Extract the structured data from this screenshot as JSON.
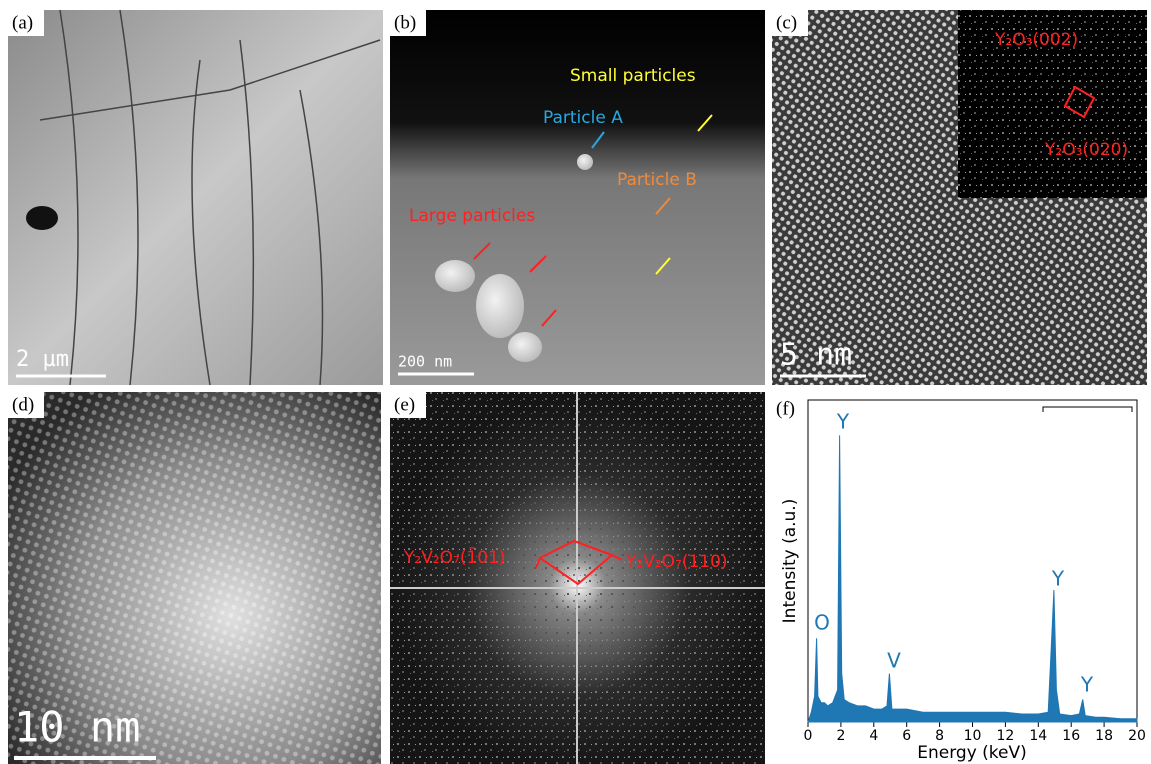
{
  "panels": [
    {
      "label": "(a)",
      "scale_bar": "2 µm"
    },
    {
      "label": "(b)",
      "scale_bar": "200 nm",
      "annotations": [
        "Small particles",
        "Particle A",
        "Particle B",
        "Large particles"
      ]
    },
    {
      "label": "(c)",
      "scale_bar": "5 nm",
      "annotations": [
        "Y₂O₃(002)",
        "Y₂O₃(020)"
      ]
    },
    {
      "label": "(d)",
      "scale_bar": "10 nm"
    },
    {
      "label": "(e)",
      "annotations": [
        "Y₂V₂O₇(1̄01)",
        "Y₂V₂O₇(110)"
      ]
    },
    {
      "label": "(f)"
    }
  ],
  "chart_data": {
    "type": "area",
    "xlabel": "Energy (keV)",
    "ylabel": "Intensity (a.u.)",
    "color": "#1f77b4",
    "x": [
      0,
      0.2,
      0.4,
      0.52,
      0.6,
      0.8,
      1.0,
      1.2,
      1.5,
      1.8,
      1.92,
      2.05,
      2.2,
      2.5,
      3,
      3.5,
      4,
      4.5,
      4.8,
      4.95,
      5.1,
      5.5,
      6,
      7,
      8,
      9,
      10,
      11,
      12,
      13,
      14,
      14.6,
      14.85,
      14.95,
      15.1,
      15.3,
      16,
      16.5,
      16.7,
      16.85,
      17.5,
      18,
      19,
      20
    ],
    "values": [
      0,
      3,
      8,
      26,
      8,
      6,
      6,
      5,
      6,
      10,
      89,
      15,
      7,
      6,
      5,
      5,
      4,
      4,
      5,
      15,
      4,
      4,
      4,
      3,
      3,
      3,
      3,
      3,
      3,
      2.5,
      2.5,
      3,
      30,
      41,
      10,
      2.5,
      2,
      2.5,
      7,
      2,
      1.5,
      1.5,
      1,
      1
    ],
    "peak_labels": [
      "O",
      "Y",
      "V",
      "Y",
      "Y"
    ],
    "xlim": [
      0,
      20
    ],
    "xticks": [
      0,
      2,
      4,
      6,
      8,
      10,
      12,
      14,
      16,
      18,
      20
    ],
    "ylim": [
      0,
      100
    ]
  }
}
